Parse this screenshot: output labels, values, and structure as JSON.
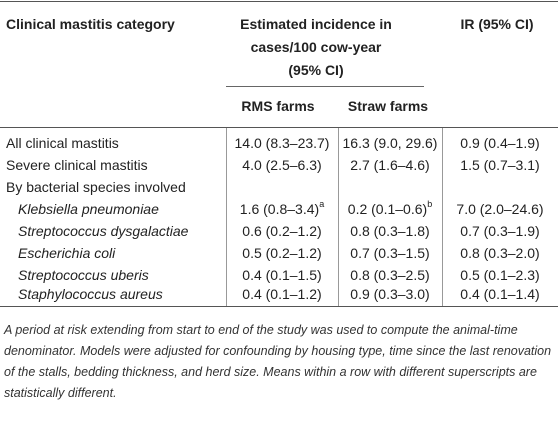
{
  "table": {
    "header": {
      "category": "Clinical mastitis category",
      "estimated_line1": "Estimated incidence in",
      "estimated_line2": "cases/100 cow-year",
      "estimated_line3": "(95% CI)",
      "ir": "IR (95% CI)",
      "rms": "RMS farms",
      "straw": "Straw farms"
    },
    "rows": [
      {
        "label": "All clinical mastitis",
        "rms": "14.0 (8.3–23.7)",
        "rms_sup": "",
        "straw": "16.3 (9.0, 29.6)",
        "straw_sup": "",
        "ir": "0.9 (0.4–1.9)"
      },
      {
        "label": "Severe clinical mastitis",
        "rms": "4.0 (2.5–6.3)",
        "rms_sup": "",
        "straw": "2.7 (1.6–4.6)",
        "straw_sup": "",
        "ir": "1.5 (0.7–3.1)"
      },
      {
        "label": "By bacterial species involved",
        "rms": "",
        "rms_sup": "",
        "straw": "",
        "straw_sup": "",
        "ir": ""
      },
      {
        "label": "Klebsiella pneumoniae",
        "rms": "1.6 (0.8–3.4)",
        "rms_sup": "a",
        "straw": "0.2 (0.1–0.6)",
        "straw_sup": "b",
        "ir": "7.0 (2.0–24.6)"
      },
      {
        "label": "Streptococcus dysgalactiae",
        "rms": "0.6 (0.2–1.2)",
        "rms_sup": "",
        "straw": "0.8 (0.3–1.8)",
        "straw_sup": "",
        "ir": "0.7 (0.3–1.9)"
      },
      {
        "label": "Escherichia coli",
        "rms": "0.5 (0.2–1.2)",
        "rms_sup": "",
        "straw": "0.7 (0.3–1.5)",
        "straw_sup": "",
        "ir": "0.8 (0.3–2.0)"
      },
      {
        "label": "Streptococcus uberis",
        "rms": "0.4 (0.1–1.5)",
        "rms_sup": "",
        "straw": "0.8 (0.3–2.5)",
        "straw_sup": "",
        "ir": "0.5 (0.1–2.3)"
      },
      {
        "label": "Staphylococcus aureus",
        "rms": "0.4 (0.1–1.2)",
        "rms_sup": "",
        "straw": "0.9 (0.3–3.0)",
        "straw_sup": "",
        "ir": "0.4 (0.1–1.4)"
      }
    ]
  },
  "footnote": "A period at risk extending from start to end of the study was used to compute the animal-time denominator. Models were adjusted for confounding by housing type, time since the last renovation of the stalls, bedding thickness, and herd size. Means within a row with different superscripts are statistically different."
}
